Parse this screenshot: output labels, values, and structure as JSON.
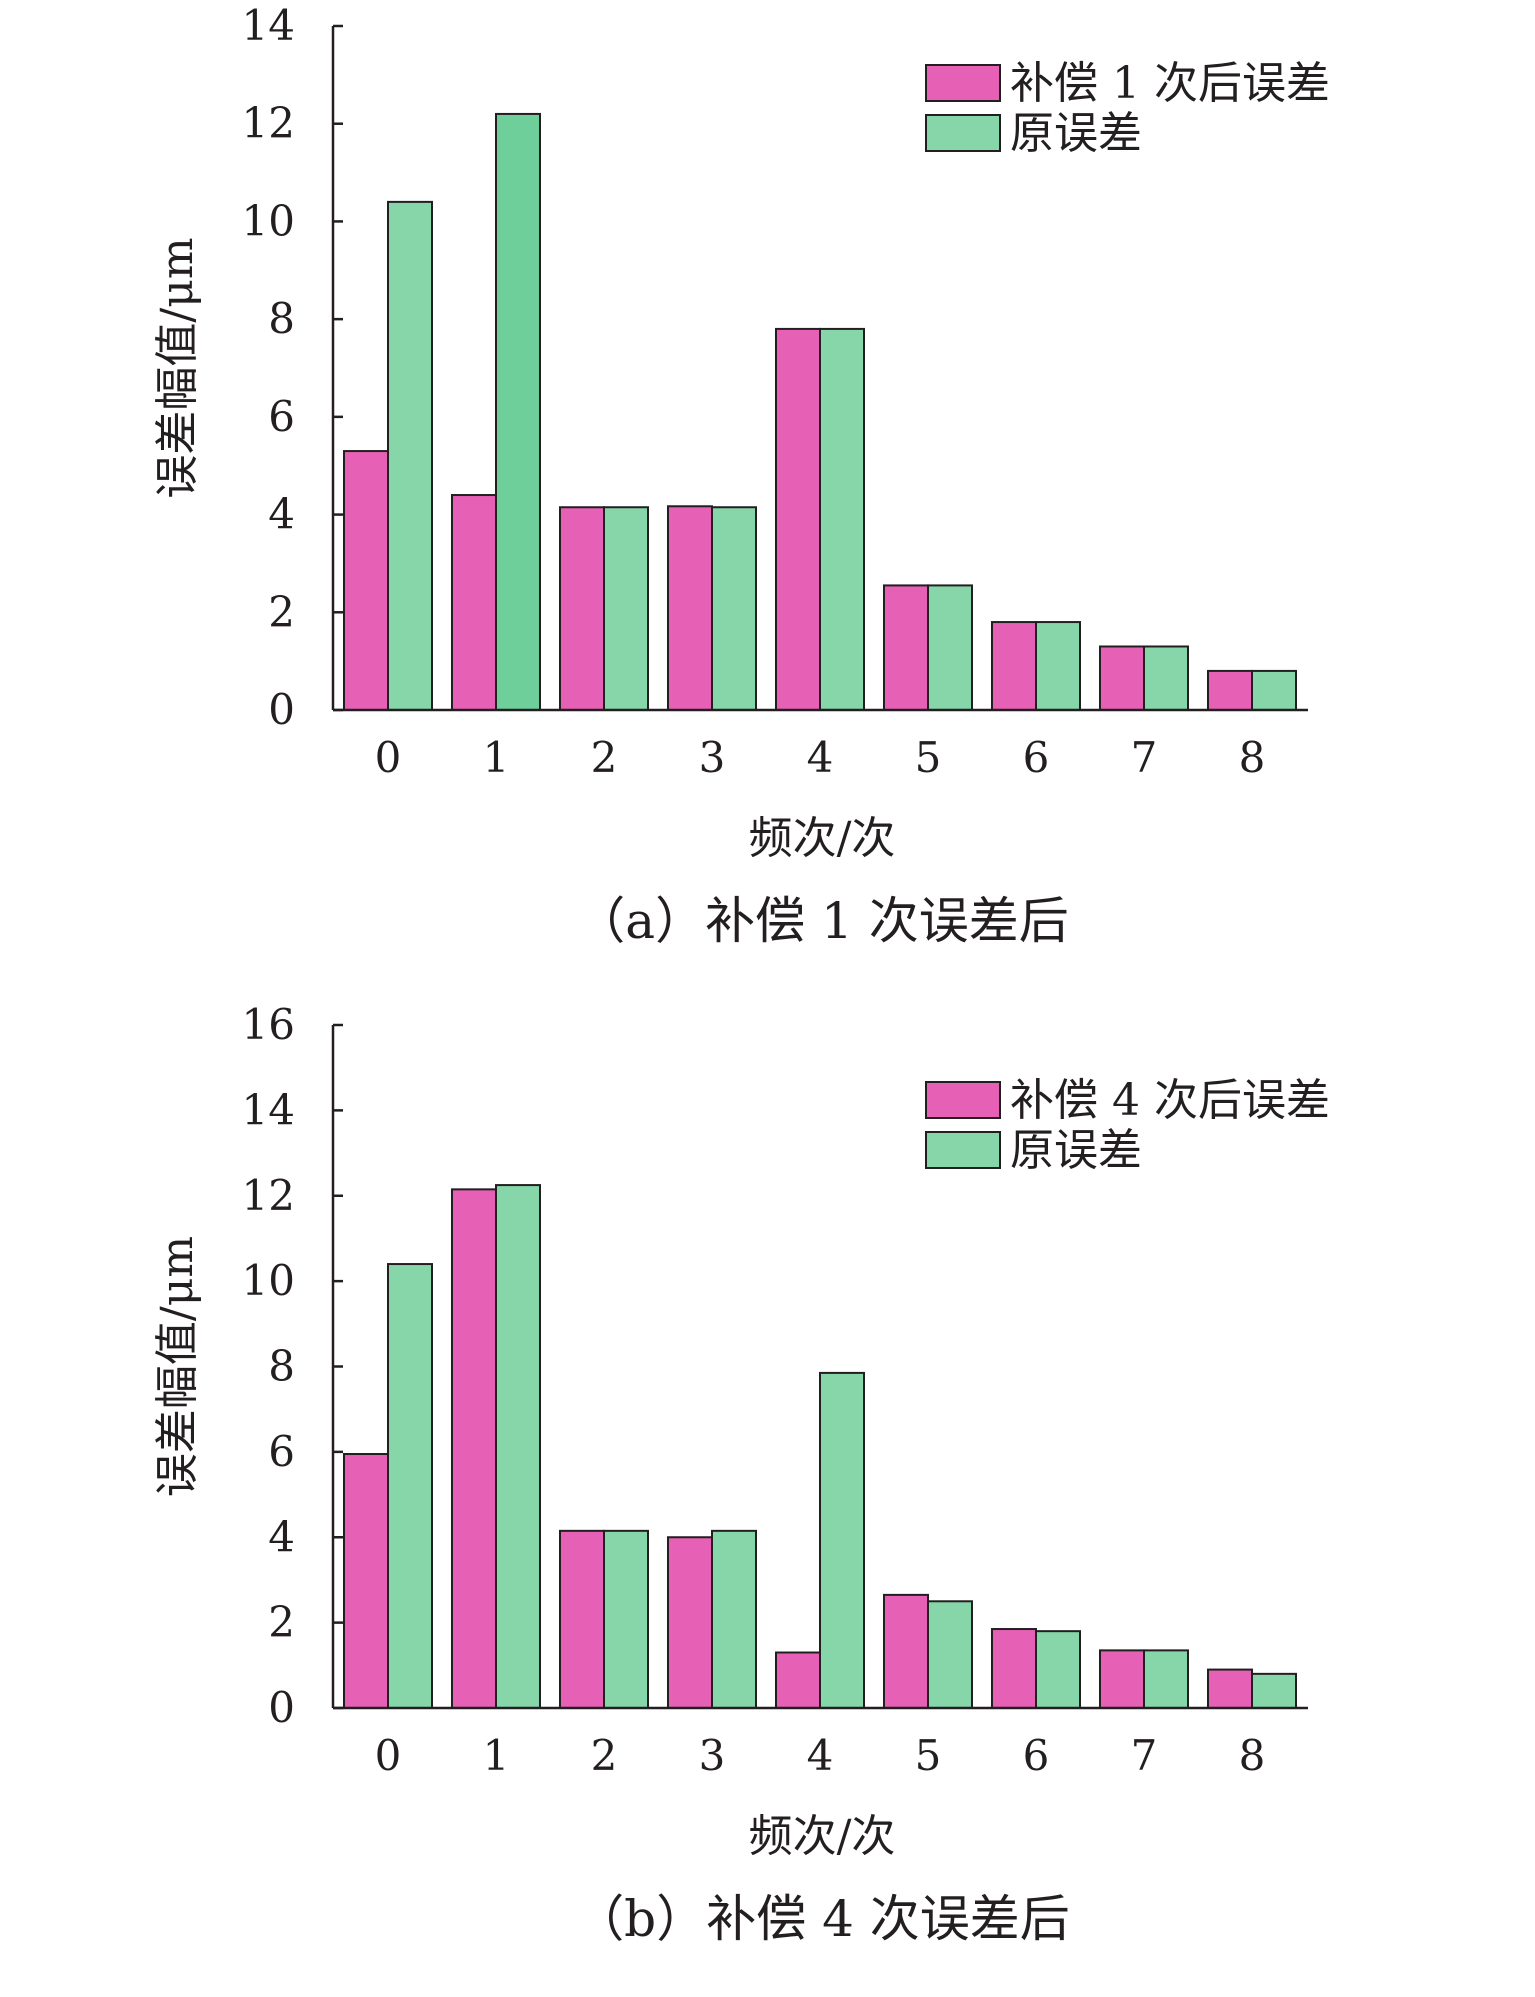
{
  "colors": {
    "compensated": "#e660b6",
    "original": "#86d6aa",
    "original_highlight": "#6fcf9a",
    "axis": "#231f20",
    "bar_stroke": "#231f20"
  },
  "chart_data": [
    {
      "type": "bar",
      "caption": "（a）补偿 1 次误差后",
      "categories": [
        "0",
        "1",
        "2",
        "3",
        "4",
        "5",
        "6",
        "7",
        "8"
      ],
      "series": [
        {
          "name": "补偿 1 次后误差",
          "values": [
            5.3,
            4.4,
            4.15,
            4.17,
            7.8,
            2.55,
            1.8,
            1.3,
            0.8
          ]
        },
        {
          "name": "原误差",
          "values": [
            10.4,
            12.2,
            4.15,
            4.15,
            7.8,
            2.55,
            1.8,
            1.3,
            0.8
          ]
        }
      ],
      "xlabel": "频次/次",
      "ylabel": "误差幅值/μm",
      "ylim": [
        0,
        14
      ],
      "yticks": [
        "0",
        "2",
        "4",
        "6",
        "8",
        "10",
        "12",
        "14"
      ],
      "grid": false,
      "legend_position": "top-right"
    },
    {
      "type": "bar",
      "caption": "（b）补偿 4 次误差后",
      "categories": [
        "0",
        "1",
        "2",
        "3",
        "4",
        "5",
        "6",
        "7",
        "8"
      ],
      "series": [
        {
          "name": "补偿 4 次后误差",
          "values": [
            5.95,
            12.15,
            4.15,
            4.0,
            1.3,
            2.65,
            1.85,
            1.35,
            0.9
          ]
        },
        {
          "name": "原误差",
          "values": [
            10.4,
            12.25,
            4.15,
            4.15,
            7.85,
            2.5,
            1.8,
            1.35,
            0.8
          ]
        }
      ],
      "xlabel": "频次/次",
      "ylabel": "误差幅值/μm",
      "ylim": [
        0,
        16
      ],
      "yticks": [
        "0",
        "2",
        "4",
        "6",
        "8",
        "10",
        "12",
        "14",
        "16"
      ],
      "grid": false,
      "legend_position": "top-right"
    }
  ]
}
